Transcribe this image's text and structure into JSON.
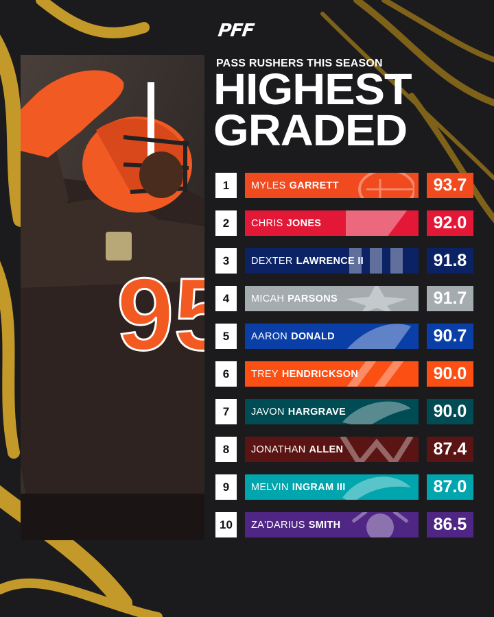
{
  "brand": {
    "logo_text": "PFF"
  },
  "header": {
    "subtitle": "PASS RUSHERS THIS SEASON",
    "title_line1": "HIGHEST",
    "title_line2": "GRADED"
  },
  "photo": {
    "jersey_number": "95"
  },
  "players": [
    {
      "rank": "1",
      "first": "MYLES",
      "last": "GARRETT",
      "grade": "93.7",
      "color": "#f04a1e",
      "team_icon": "helmet-icon"
    },
    {
      "rank": "2",
      "first": "CHRIS",
      "last": "JONES",
      "grade": "92.0",
      "color": "#e31837",
      "team_icon": "arrowhead-icon"
    },
    {
      "rank": "3",
      "first": "DEXTER",
      "last": "LAWRENCE II",
      "grade": "91.8",
      "color": "#0b2265",
      "team_icon": "ny-icon"
    },
    {
      "rank": "4",
      "first": "MICAH",
      "last": "PARSONS",
      "grade": "91.7",
      "color": "#a5acaf",
      "team_icon": "star-icon"
    },
    {
      "rank": "5",
      "first": "AARON",
      "last": "DONALD",
      "grade": "90.7",
      "color": "#0a3fa8",
      "team_icon": "horn-icon"
    },
    {
      "rank": "6",
      "first": "TREY",
      "last": "HENDRICKSON",
      "grade": "90.0",
      "color": "#fb4f14",
      "team_icon": "tiger-stripe-icon"
    },
    {
      "rank": "7",
      "first": "JAVON",
      "last": "HARGRAVE",
      "grade": "90.0",
      "color": "#004c54",
      "team_icon": "eagle-icon"
    },
    {
      "rank": "8",
      "first": "JONATHAN",
      "last": "ALLEN",
      "grade": "87.4",
      "color": "#5a1414",
      "team_icon": "w-icon"
    },
    {
      "rank": "9",
      "first": "MELVIN",
      "last": "INGRAM III",
      "grade": "87.0",
      "color": "#00a5ad",
      "team_icon": "dolphin-icon"
    },
    {
      "rank": "10",
      "first": "ZA'DARIUS",
      "last": "SMITH",
      "grade": "86.5",
      "color": "#4f2683",
      "team_icon": "viking-icon"
    }
  ]
}
